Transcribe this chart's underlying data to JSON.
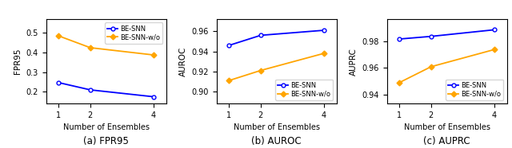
{
  "x": [
    1,
    2,
    4
  ],
  "fpr95": {
    "be_snn": [
      0.247,
      0.21,
      0.175
    ],
    "be_snn_wo": [
      0.485,
      0.425,
      0.388
    ]
  },
  "auroc": {
    "be_snn": [
      0.946,
      0.956,
      0.961
    ],
    "be_snn_wo": [
      0.911,
      0.921,
      0.938
    ]
  },
  "auprc": {
    "be_snn": [
      0.982,
      0.984,
      0.989
    ],
    "be_snn_wo": [
      0.949,
      0.961,
      0.974
    ]
  },
  "color_snn": "#0000ff",
  "color_wo": "#ffa500",
  "xlabel": "Number of Ensembles",
  "label_snn": "BE-SNN",
  "label_wo": "BE-SNN-w/o",
  "caption_a": "(a) FPR95",
  "caption_b": "(b) AUROC",
  "caption_c": "(c) AUPRC",
  "ylabel_a": "FPR95",
  "ylabel_b": "AUROC",
  "ylabel_c": "AUPRC",
  "fpr95_ylim": [
    0.14,
    0.57
  ],
  "fpr95_yticks": [
    0.2,
    0.3,
    0.4,
    0.5
  ],
  "auroc_ylim": [
    0.888,
    0.972
  ],
  "auroc_yticks": [
    0.9,
    0.92,
    0.94,
    0.96
  ],
  "auprc_ylim": [
    0.933,
    0.997
  ],
  "auprc_yticks": [
    0.94,
    0.96,
    0.98
  ]
}
